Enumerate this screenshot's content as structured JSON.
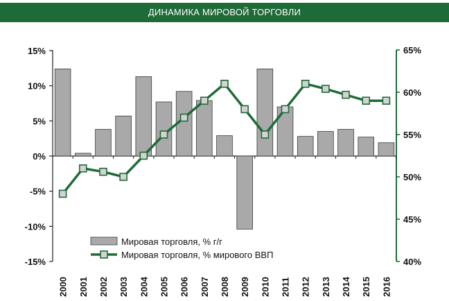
{
  "header": {
    "title": "ДИНАМИКА МИРОВОЙ ТОРГОВЛИ"
  },
  "colors": {
    "header_bg": "#1f6b38",
    "bar_fill": "#a9a9a9",
    "bar_stroke": "#3a3a3a",
    "line": "#1f6b38",
    "marker_fill": "#d3d3d3"
  },
  "chart_data": {
    "type": "bar+line",
    "categories": [
      "2000",
      "2001",
      "2002",
      "2003",
      "2004",
      "2005",
      "2006",
      "2007",
      "2008",
      "2009",
      "2010",
      "2011",
      "2012",
      "2013",
      "2014",
      "2015",
      "2016"
    ],
    "series": [
      {
        "name": "Мировая торговля, % г/г",
        "type": "bar",
        "axis": "left",
        "values": [
          12.4,
          0.4,
          3.8,
          5.7,
          11.3,
          7.7,
          9.2,
          7.9,
          2.9,
          -10.4,
          12.4,
          7.0,
          2.8,
          3.5,
          3.8,
          2.7,
          1.9
        ]
      },
      {
        "name": "Мировая торговля, % мирового ВВП",
        "type": "line",
        "axis": "right",
        "values": [
          48.0,
          51.0,
          50.6,
          50.0,
          52.5,
          55.0,
          57.0,
          59.0,
          61.0,
          58.0,
          55.0,
          58.0,
          61.0,
          60.4,
          59.7,
          59.0,
          59.0
        ]
      }
    ],
    "y_left": {
      "min": -15,
      "max": 15,
      "ticks": [
        "-15%",
        "-10%",
        "-5%",
        "0%",
        "5%",
        "10%",
        "15%"
      ]
    },
    "y_right": {
      "min": 40,
      "max": 65,
      "ticks": [
        "40%",
        "45%",
        "50%",
        "55%",
        "60%",
        "65%"
      ]
    },
    "legend": {
      "placement": "bottom-left"
    }
  }
}
